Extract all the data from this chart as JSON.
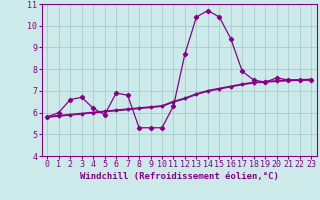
{
  "line1_x": [
    0,
    1,
    2,
    3,
    4,
    5,
    6,
    7,
    8,
    9,
    10,
    11,
    12,
    13,
    14,
    15,
    16,
    17,
    18,
    19,
    20,
    21,
    22,
    23
  ],
  "line1_y": [
    5.8,
    6.0,
    6.6,
    6.7,
    6.2,
    5.9,
    6.9,
    6.8,
    5.3,
    5.3,
    5.3,
    6.3,
    8.7,
    10.4,
    10.7,
    10.4,
    9.4,
    7.9,
    7.5,
    7.4,
    7.6,
    7.5,
    7.5,
    7.5
  ],
  "line2_x": [
    0,
    1,
    2,
    3,
    4,
    5,
    6,
    7,
    8,
    9,
    10,
    11,
    12,
    13,
    14,
    15,
    16,
    17,
    18,
    19,
    20,
    21,
    22,
    23
  ],
  "line2_y": [
    5.8,
    5.85,
    5.9,
    5.95,
    6.0,
    6.05,
    6.1,
    6.15,
    6.2,
    6.25,
    6.3,
    6.5,
    6.65,
    6.85,
    7.0,
    7.1,
    7.2,
    7.3,
    7.38,
    7.42,
    7.45,
    7.48,
    7.5,
    7.52
  ],
  "color": "#880088",
  "bg_color": "#cceaea",
  "grid_color": "#aacccc",
  "xlabel": "Windchill (Refroidissement éolien,°C)",
  "xlim": [
    -0.5,
    23.5
  ],
  "ylim": [
    4,
    11
  ],
  "yticks": [
    4,
    5,
    6,
    7,
    8,
    9,
    10,
    11
  ],
  "xticks": [
    0,
    1,
    2,
    3,
    4,
    5,
    6,
    7,
    8,
    9,
    10,
    11,
    12,
    13,
    14,
    15,
    16,
    17,
    18,
    19,
    20,
    21,
    22,
    23
  ],
  "xlabel_fontsize": 6.5,
  "tick_fontsize": 6.0,
  "title_color": "#880088"
}
